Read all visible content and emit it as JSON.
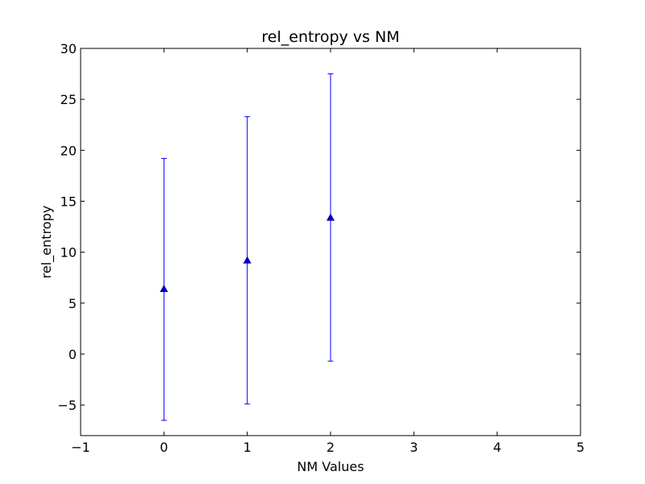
{
  "chart_data": {
    "type": "scatter",
    "title": "rel_entropy vs NM",
    "xlabel": "NM Values",
    "ylabel": "rel_entropy",
    "xlim": [
      -1,
      5
    ],
    "ylim": [
      -8,
      30
    ],
    "xticks": [
      -1,
      0,
      1,
      2,
      3,
      4,
      5
    ],
    "xtick_labels": [
      "−1",
      "0",
      "1",
      "2",
      "3",
      "4",
      "5"
    ],
    "yticks": [
      -5,
      0,
      5,
      10,
      15,
      20,
      25,
      30
    ],
    "ytick_labels": [
      "−5",
      "0",
      "5",
      "10",
      "15",
      "20",
      "25",
      "30"
    ],
    "grid": false,
    "series": [
      {
        "marker": "triangle-up",
        "color": "#0000cc",
        "error_color": "#0000ff",
        "x": [
          0,
          1,
          2
        ],
        "y": [
          6.4,
          9.2,
          13.4
        ],
        "yerr_low": [
          -6.5,
          -4.9,
          -0.7
        ],
        "yerr_high": [
          19.2,
          23.3,
          27.5
        ]
      }
    ]
  }
}
